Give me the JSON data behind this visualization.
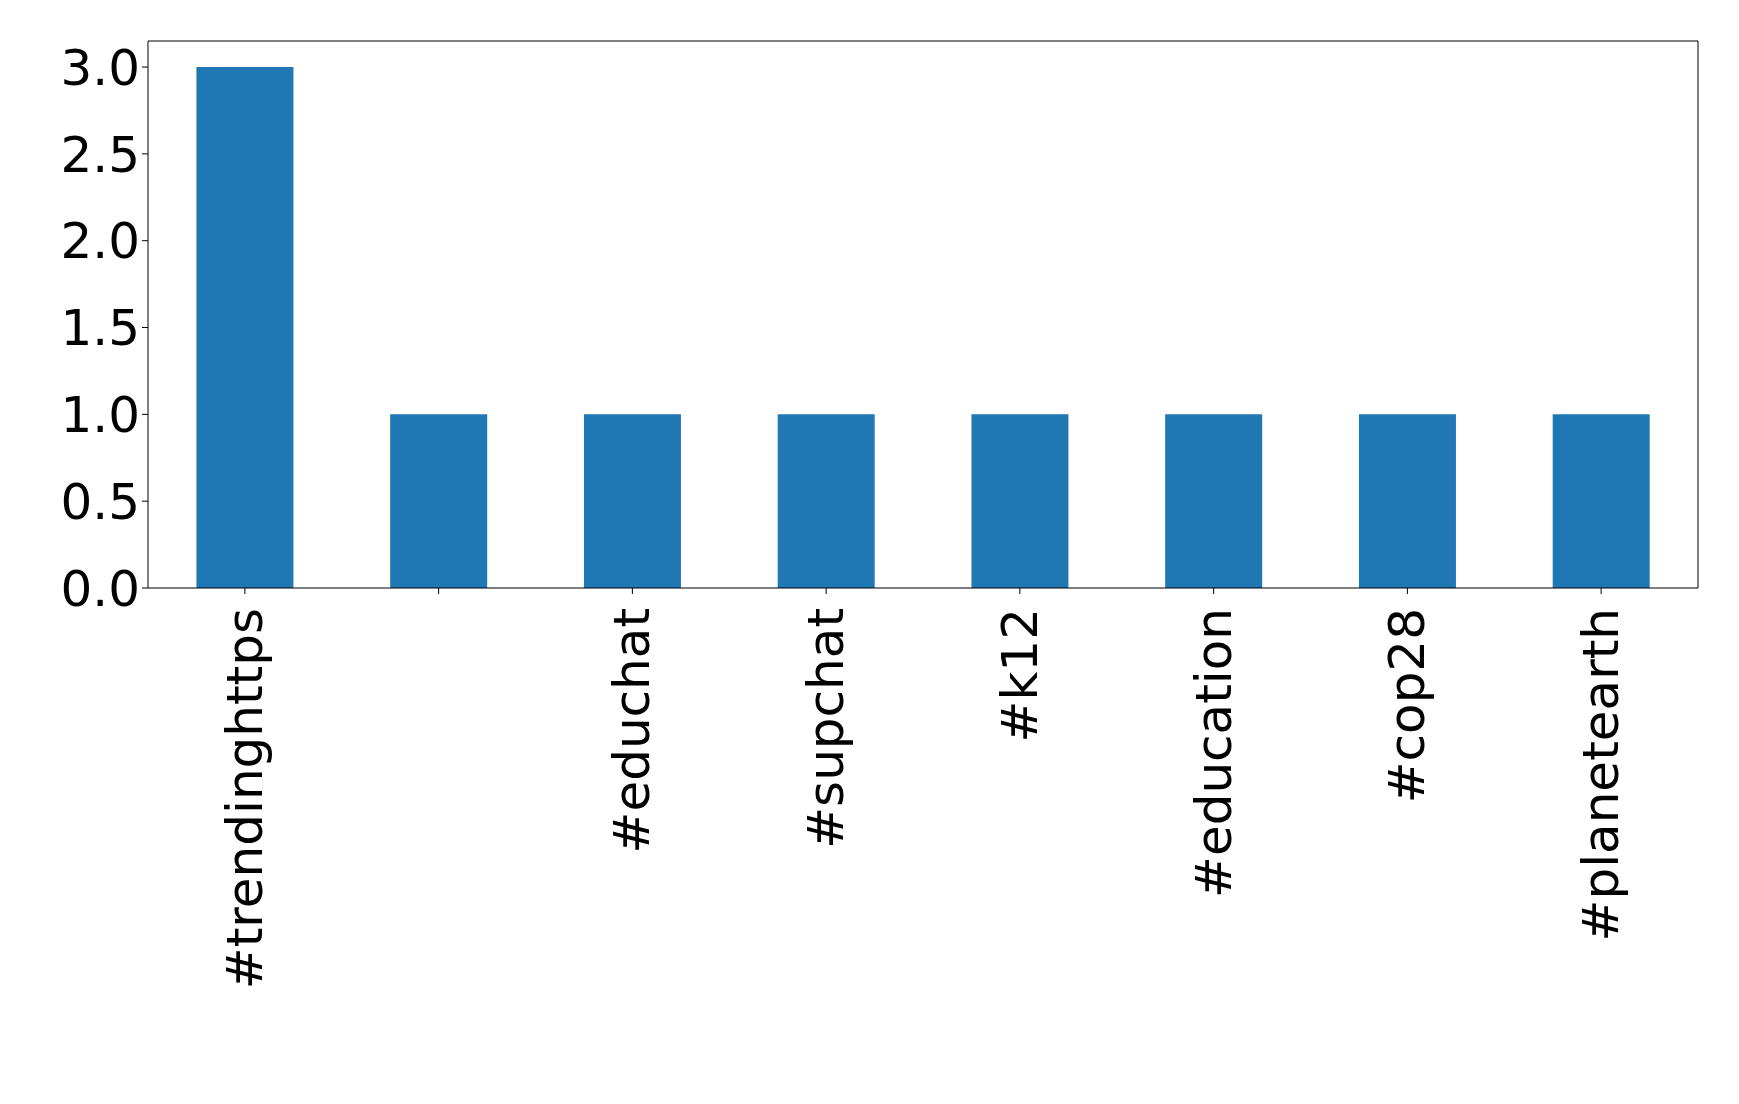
{
  "chart_data": {
    "type": "bar",
    "categories": [
      "#trendinghttps",
      null,
      "#educhat",
      "#supchat",
      "#k12",
      "#education",
      "#cop28",
      "#planetearth"
    ],
    "values": [
      3,
      1,
      1,
      1,
      1,
      1,
      1,
      1
    ],
    "color": "#1f77b4",
    "ylim": [
      0,
      3.15
    ],
    "yticks": [
      {
        "value": 0,
        "label": "0.0"
      },
      {
        "value": 0.5,
        "label": "0.5"
      },
      {
        "value": 1,
        "label": "1.0"
      },
      {
        "value": 1.5,
        "label": "1.5"
      },
      {
        "value": 2,
        "label": "2.0"
      },
      {
        "value": 2.5,
        "label": "2.5"
      },
      {
        "value": 3,
        "label": "3.0"
      }
    ],
    "grid": false,
    "legend": false
  }
}
